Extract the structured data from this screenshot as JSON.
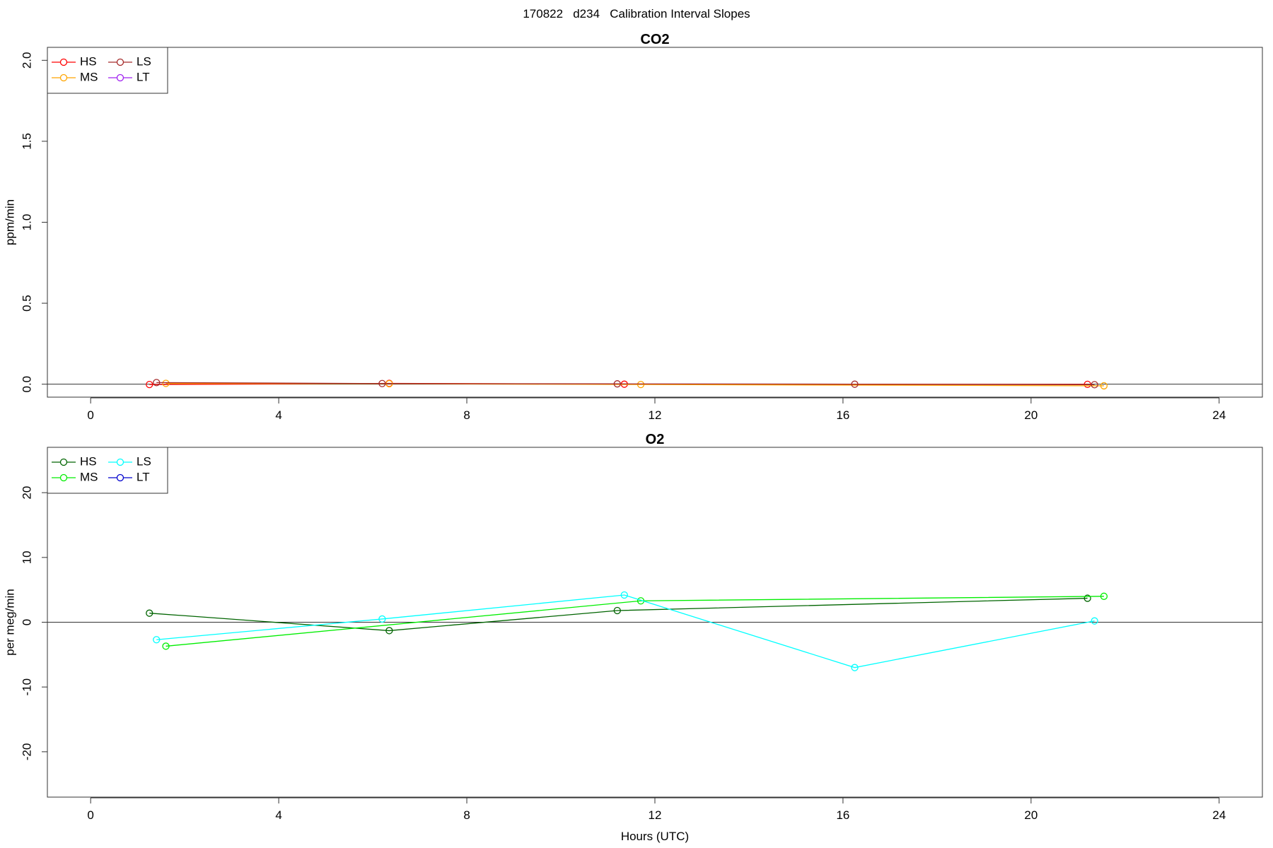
{
  "page_title": "170822   d234   Calibration Interval Slopes",
  "chart_data": [
    {
      "type": "line",
      "title": "CO2",
      "xlabel": "",
      "ylabel": "ppm/min",
      "xlim": [
        -0.92,
        24.92
      ],
      "ylim": [
        -0.08,
        2.08
      ],
      "xticks": [
        0,
        4,
        8,
        12,
        16,
        20,
        24
      ],
      "yticks": [
        0.0,
        0.5,
        1.0,
        1.5,
        2.0
      ],
      "ytick_labels": [
        "0.0",
        "0.5",
        "1.0",
        "1.5",
        "2.0"
      ],
      "grid": false,
      "zero_line": true,
      "legend": {
        "position": "top-left",
        "columns": 2
      },
      "series": [
        {
          "name": "HS",
          "color": "#ff0000",
          "x": [
            1.25,
            6.35,
            11.35,
            21.2
          ],
          "y": [
            -0.002,
            0.005,
            0.0,
            -0.001
          ]
        },
        {
          "name": "MS",
          "color": "#ffa500",
          "x": [
            1.6,
            6.35,
            11.7,
            21.55
          ],
          "y": [
            0.005,
            0.003,
            -0.002,
            -0.01
          ]
        },
        {
          "name": "LS",
          "color": "#a52a2a",
          "x": [
            1.4,
            6.2,
            11.2,
            16.25,
            21.35
          ],
          "y": [
            0.01,
            0.004,
            0.002,
            0.0,
            -0.003
          ]
        },
        {
          "name": "LT",
          "color": "#a020f0",
          "x": [],
          "y": []
        }
      ]
    },
    {
      "type": "line",
      "title": "O2",
      "xlabel": "Hours (UTC)",
      "ylabel": "per meg/min",
      "xlim": [
        -0.92,
        24.92
      ],
      "ylim": [
        -27,
        27
      ],
      "xticks": [
        0,
        4,
        8,
        12,
        16,
        20,
        24
      ],
      "yticks": [
        -20,
        -10,
        0,
        10,
        20
      ],
      "ytick_labels": [
        "-20",
        "-10",
        "0",
        "10",
        "20"
      ],
      "grid": false,
      "zero_line": true,
      "legend": {
        "position": "top-left",
        "columns": 2
      },
      "series": [
        {
          "name": "HS",
          "color": "#006400",
          "x": [
            1.25,
            6.35,
            11.2,
            21.2
          ],
          "y": [
            1.4,
            -1.3,
            1.8,
            3.7
          ]
        },
        {
          "name": "MS",
          "color": "#00ee00",
          "x": [
            1.6,
            11.7,
            21.55
          ],
          "y": [
            -3.7,
            3.3,
            4.0
          ]
        },
        {
          "name": "LS",
          "color": "#00ffff",
          "x": [
            1.4,
            6.2,
            11.35,
            16.25,
            21.35
          ],
          "y": [
            -2.7,
            0.5,
            4.2,
            -7.0,
            0.2
          ]
        },
        {
          "name": "LT",
          "color": "#0000cd",
          "x": [],
          "y": []
        }
      ]
    }
  ]
}
